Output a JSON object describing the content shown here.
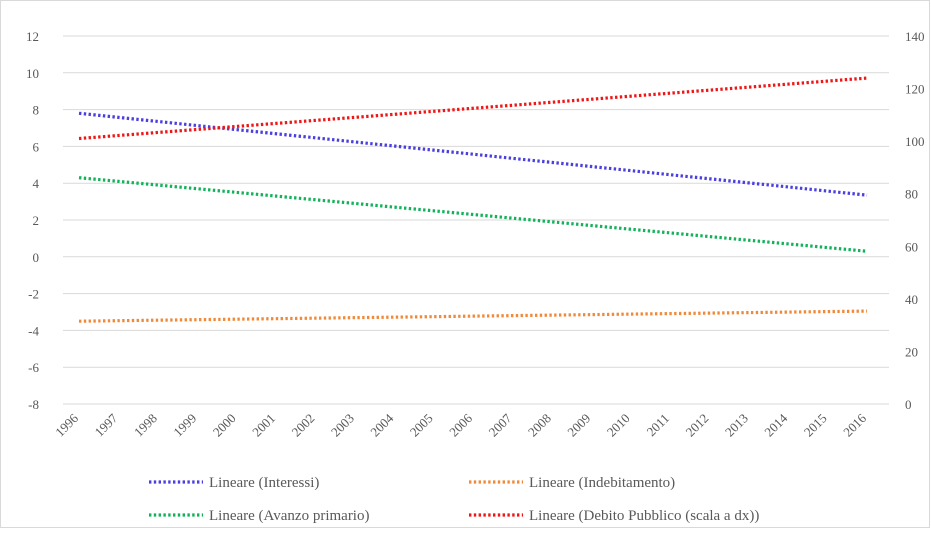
{
  "chart_data": {
    "type": "line",
    "title": "",
    "xlabel": "",
    "ylabel": "",
    "y2label": "",
    "x": [
      "1996",
      "1997",
      "1998",
      "1999",
      "2000",
      "2001",
      "2002",
      "2003",
      "2004",
      "2005",
      "2006",
      "2007",
      "2008",
      "2009",
      "2010",
      "2011",
      "2012",
      "2013",
      "2014",
      "2015",
      "2016"
    ],
    "ylim": [
      -8,
      12
    ],
    "yticks": [
      "12",
      "10",
      "8",
      "6",
      "4",
      "2",
      "0",
      "-2",
      "-4",
      "-6",
      "-8"
    ],
    "y2lim": [
      0,
      140
    ],
    "y2ticks": [
      "140",
      "120",
      "100",
      "80",
      "60",
      "40",
      "20",
      "0"
    ],
    "grid": true,
    "legend_position": "bottom",
    "line_style": "dotted",
    "series": [
      {
        "name": "Lineare (Interessi)",
        "axis": "left",
        "color": "#4a3fe0",
        "start": 7.8,
        "end": 3.35
      },
      {
        "name": "Lineare (Indebitamento)",
        "axis": "left",
        "color": "#f08a3a",
        "start": -3.5,
        "end": -2.95
      },
      {
        "name": "Lineare (Avanzo primario)",
        "axis": "left",
        "color": "#12b25a",
        "start": 4.3,
        "end": 0.3
      },
      {
        "name": "Lineare (Debito Pubblico (scala a dx))",
        "axis": "right",
        "color": "#f01616",
        "start": 101,
        "end": 124
      }
    ]
  }
}
